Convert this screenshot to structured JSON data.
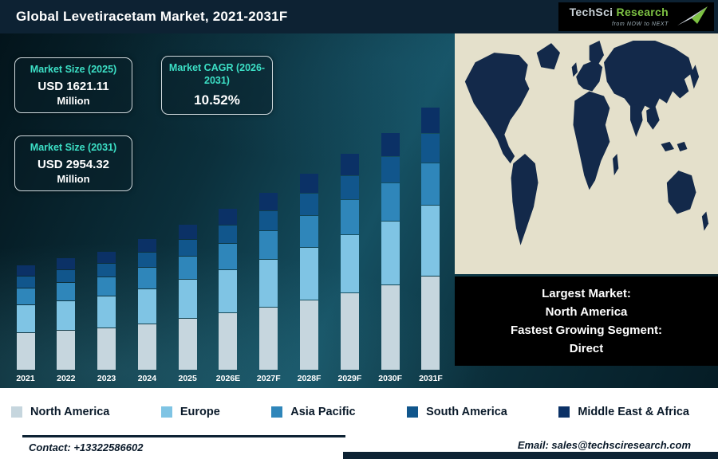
{
  "colors": {
    "header-navy": "#0d2233",
    "accent-teal": "#3ce0c6",
    "logo-green": "#7dc243"
  },
  "header": {
    "title": "Global Levetiracetam Market, 2021-2031F",
    "logo": {
      "brand_primary": "TechSci ",
      "brand_secondary": "Research",
      "tagline": "from NOW to NEXT"
    }
  },
  "stats": [
    {
      "label": "Market Size (2025)",
      "value": "USD 1621.11",
      "unit": "Million"
    },
    {
      "label": "Market CAGR (2026-2031)",
      "value": "10.52%"
    },
    {
      "label": "Market Size (2031)",
      "value": "USD 2954.32",
      "unit": "Million"
    }
  ],
  "chart_data": {
    "type": "bar",
    "stacked": true,
    "title": "Global Levetiracetam Market, 2021-2031F",
    "units": "USD Million",
    "ylim": [
      0,
      3000
    ],
    "grid": false,
    "legend_position": "bottom",
    "categories": [
      "2021",
      "2022",
      "2023",
      "2024",
      "2025",
      "2026E",
      "2027F",
      "2028F",
      "2029F",
      "2030F",
      "2031F"
    ],
    "series": [
      {
        "name": "North America",
        "color": "#c6d6de",
        "values": [
          414,
          441,
          472,
          522,
          584,
          645,
          712,
          787,
          870,
          962,
          1064
        ]
      },
      {
        "name": "Europe",
        "color": "#7fc4e4",
        "values": [
          311,
          331,
          354,
          392,
          438,
          484,
          534,
          590,
          653,
          721,
          798
        ]
      },
      {
        "name": "Asia Pacific",
        "color": "#2f86ba",
        "values": [
          184,
          196,
          210,
          232,
          259,
          287,
          317,
          350,
          387,
          428,
          473
        ]
      },
      {
        "name": "South America",
        "color": "#11568c",
        "values": [
          127,
          135,
          144,
          160,
          178,
          197,
          218,
          241,
          266,
          294,
          325
        ]
      },
      {
        "name": "Middle East & Africa",
        "color": "#0b3166",
        "values": [
          115,
          123,
          131,
          145,
          162,
          179,
          198,
          219,
          242,
          267,
          295
        ]
      }
    ],
    "totals": [
      1150,
      1225,
      1310,
      1450,
      1621.11,
      1791,
      1979,
      2187,
      2417,
      2672,
      2954.32
    ]
  },
  "map": {
    "ocean_color": "#e4e0cb",
    "land_color": "#13294a"
  },
  "highlight_box": {
    "lines": [
      "Largest Market:",
      "North America",
      "Fastest Growing Segment:",
      "Direct"
    ]
  },
  "legend": [
    {
      "label": "North America",
      "color": "#c6d6de"
    },
    {
      "label": "Europe",
      "color": "#7fc4e4"
    },
    {
      "label": "Asia Pacific",
      "color": "#2f86ba"
    },
    {
      "label": "South America",
      "color": "#11568c"
    },
    {
      "label": "Middle East & Africa",
      "color": "#0b3166"
    }
  ],
  "footer": {
    "contact": "Contact: +13322586602",
    "email": "Email: sales@techsciresearch.com"
  }
}
